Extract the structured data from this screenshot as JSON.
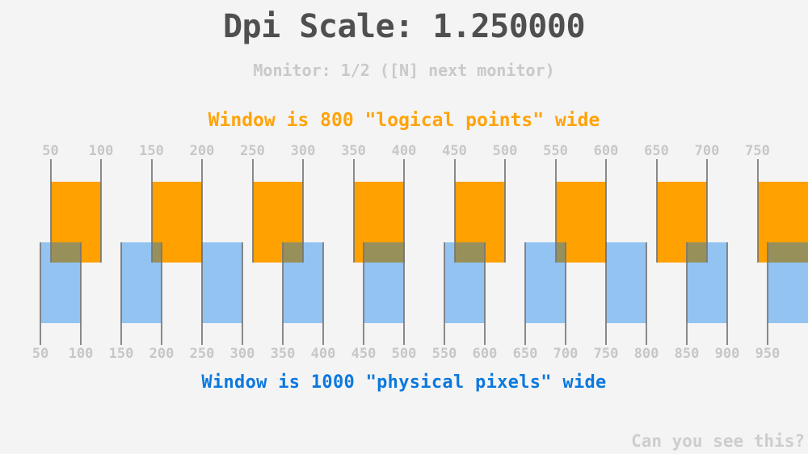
{
  "window_title": "dpi scale test window",
  "title": "Dpi Scale: 1.250000",
  "subtitle": "Monitor: 1/2 ([N] next monitor)",
  "dpi_scale": 1.25,
  "logical_heading": "Window is 800 \"logical points\" wide",
  "physical_heading": "Window is 1000 \"physical pixels\" wide",
  "footer_note": "Can you see this?",
  "top_ruler": {
    "unit": "logical points",
    "labels": [
      50,
      100,
      150,
      200,
      250,
      300,
      350,
      400,
      450,
      500,
      550,
      600,
      650,
      700,
      750
    ]
  },
  "bottom_ruler": {
    "unit": "physical pixels",
    "labels": [
      50,
      100,
      150,
      200,
      250,
      300,
      350,
      400,
      450,
      500,
      550,
      600,
      650,
      700,
      750,
      800,
      850,
      900,
      950
    ]
  },
  "bars": {
    "orange_logical_intervals": [
      [
        50,
        100
      ],
      [
        150,
        200
      ],
      [
        250,
        300
      ],
      [
        350,
        400
      ],
      [
        450,
        500
      ],
      [
        550,
        600
      ],
      [
        650,
        700
      ],
      [
        750,
        800
      ]
    ],
    "blue_physical_intervals": [
      [
        50,
        100
      ],
      [
        150,
        200
      ],
      [
        250,
        300
      ],
      [
        350,
        400
      ],
      [
        450,
        500
      ],
      [
        550,
        600
      ],
      [
        650,
        700
      ],
      [
        750,
        800
      ],
      [
        850,
        900
      ],
      [
        950,
        1000
      ]
    ]
  },
  "colors": {
    "background": "#f4f4f4",
    "title_text": "#4f4f4f",
    "subtitle_text": "#c9c9c9",
    "orange": "#ffa100",
    "blue_bar": "#93c3f1",
    "overlap": "#98905a",
    "blue_text": "#0c78df",
    "ruler_label": "#c7c7c7",
    "tick": "#757575",
    "footer_text": "#cdcdcd"
  }
}
